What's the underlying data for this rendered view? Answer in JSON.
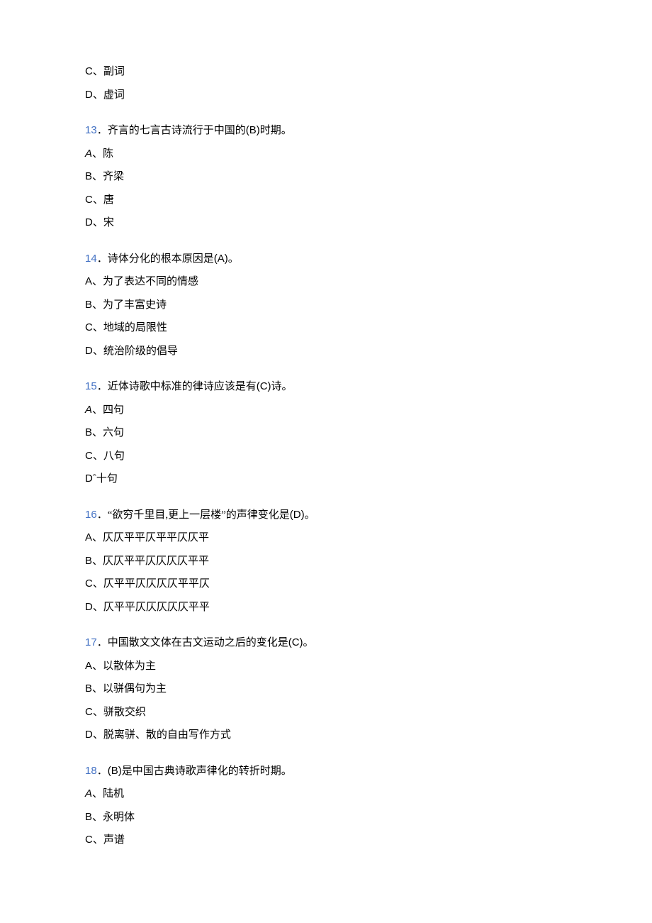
{
  "colors": {
    "question_number": "#4472c4",
    "text": "#000000",
    "background": "#ffffff"
  },
  "typography": {
    "body_fontsize": 15,
    "line_height": 1.5,
    "font_family_cn": "SimSun",
    "font_family_latin": "Arial"
  },
  "orphan_options": [
    {
      "letter": "C",
      "text": "副词"
    },
    {
      "letter": "D",
      "text": "虚词"
    }
  ],
  "questions": [
    {
      "number": "13",
      "stem_prefix": "．齐言的七言古诗流行于中国的",
      "answer_marker": "(B)",
      "stem_suffix": "时期。",
      "option_a_italic": true,
      "options": [
        {
          "letter": "A",
          "sep": "、",
          "text": "陈"
        },
        {
          "letter": "B",
          "sep": "、",
          "text": "齐梁"
        },
        {
          "letter": "C",
          "sep": "、",
          "text": "唐"
        },
        {
          "letter": "D",
          "sep": "、",
          "text": "宋"
        }
      ]
    },
    {
      "number": "14",
      "stem_prefix": "．诗体分化的根本原因是",
      "answer_marker": "(A)",
      "stem_suffix": "。",
      "option_a_italic": false,
      "options": [
        {
          "letter": "A",
          "sep": "、",
          "text": "为了表达不同的情感"
        },
        {
          "letter": "B",
          "sep": "、",
          "text": "为了丰富史诗"
        },
        {
          "letter": "C",
          "sep": "、",
          "text": "地域的局限性"
        },
        {
          "letter": "D",
          "sep": "、",
          "text": "统治阶级的倡导"
        }
      ]
    },
    {
      "number": "15",
      "stem_prefix": "．近体诗歌中标准的律诗应该是有",
      "answer_marker": "(C)",
      "stem_suffix": "诗。",
      "option_a_italic": true,
      "options": [
        {
          "letter": "A",
          "sep": "、",
          "text": "四句"
        },
        {
          "letter": "B",
          "sep": "、",
          "text": "六句"
        },
        {
          "letter": "C",
          "sep": "、",
          "text": "八句"
        },
        {
          "letter": "D",
          "sep": "ˆ",
          "text": "十句"
        }
      ]
    },
    {
      "number": "16",
      "stem_prefix": "．“欲穷千里目,更上一层楼”的声律变化是",
      "answer_marker": "(D)",
      "stem_suffix": "。",
      "option_a_italic": false,
      "options": [
        {
          "letter": "A",
          "sep": "、",
          "text": "仄仄平平仄平平仄仄平"
        },
        {
          "letter": "B",
          "sep": "、",
          "text": "仄仄平平仄仄仄仄平平"
        },
        {
          "letter": "C",
          "sep": "、",
          "text": "仄平平仄仄仄仄平平仄"
        },
        {
          "letter": "D",
          "sep": "、",
          "text": "仄平平仄仄仄仄仄平平"
        }
      ]
    },
    {
      "number": "17",
      "stem_prefix": "．中国散文文体在古文运动之后的变化是",
      "answer_marker": "(C)",
      "stem_suffix": "。",
      "option_a_italic": false,
      "options": [
        {
          "letter": "A",
          "sep": "、",
          "text": "以散体为主"
        },
        {
          "letter": "B",
          "sep": "、",
          "text": "以骈偶句为主"
        },
        {
          "letter": "C",
          "sep": "、",
          "text": "骈散交织"
        },
        {
          "letter": "D",
          "sep": "、",
          "text": "脱离骈、散的自由写作方式"
        }
      ]
    },
    {
      "number": "18",
      "stem_prefix": "．",
      "answer_marker": "(B)",
      "stem_suffix": "是中国古典诗歌声律化的转折时期。",
      "option_a_italic": true,
      "options": [
        {
          "letter": "A",
          "sep": "、",
          "text": "陆机"
        },
        {
          "letter": "B",
          "sep": "、",
          "text": "永明体"
        },
        {
          "letter": "C",
          "sep": "、",
          "text": "声谱"
        }
      ]
    }
  ]
}
